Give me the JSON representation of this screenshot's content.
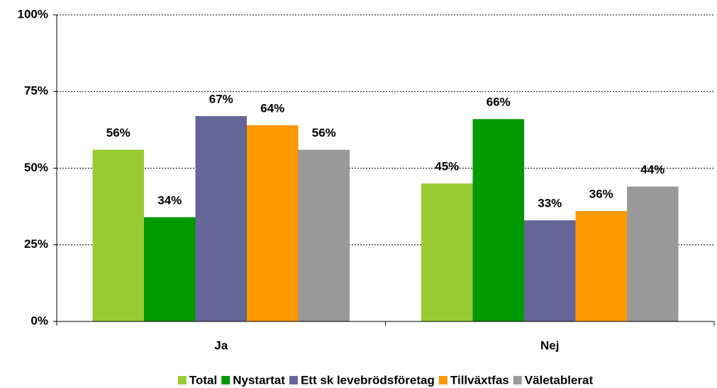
{
  "chart_data": {
    "type": "bar",
    "categories": [
      "Ja",
      "Nej"
    ],
    "series": [
      {
        "name": "Total",
        "color": "#99cc33",
        "values": [
          56,
          45
        ],
        "value_labels": [
          "56%",
          "45%"
        ]
      },
      {
        "name": "Nystartat",
        "color": "#009900",
        "values": [
          34,
          66
        ],
        "value_labels": [
          "34%",
          "66%"
        ]
      },
      {
        "name": "Ett sk levebrödsföretag",
        "color": "#666699",
        "values": [
          67,
          33
        ],
        "value_labels": [
          "67%",
          "33%"
        ]
      },
      {
        "name": "Tillväxtfas",
        "color": "#ff9900",
        "values": [
          64,
          36
        ],
        "value_labels": [
          "64%",
          "36%"
        ]
      },
      {
        "name": "Väletablerat",
        "color": "#999999",
        "values": [
          56,
          44
        ],
        "value_labels": [
          "56%",
          "44%"
        ]
      }
    ],
    "ylim": [
      0,
      100
    ],
    "yticks": [
      {
        "value": 0,
        "label": "0%"
      },
      {
        "value": 25,
        "label": "25%"
      },
      {
        "value": 50,
        "label": "50%"
      },
      {
        "value": 75,
        "label": "75%"
      },
      {
        "value": 100,
        "label": "100%"
      }
    ],
    "grid": true,
    "legend": "bottom"
  }
}
